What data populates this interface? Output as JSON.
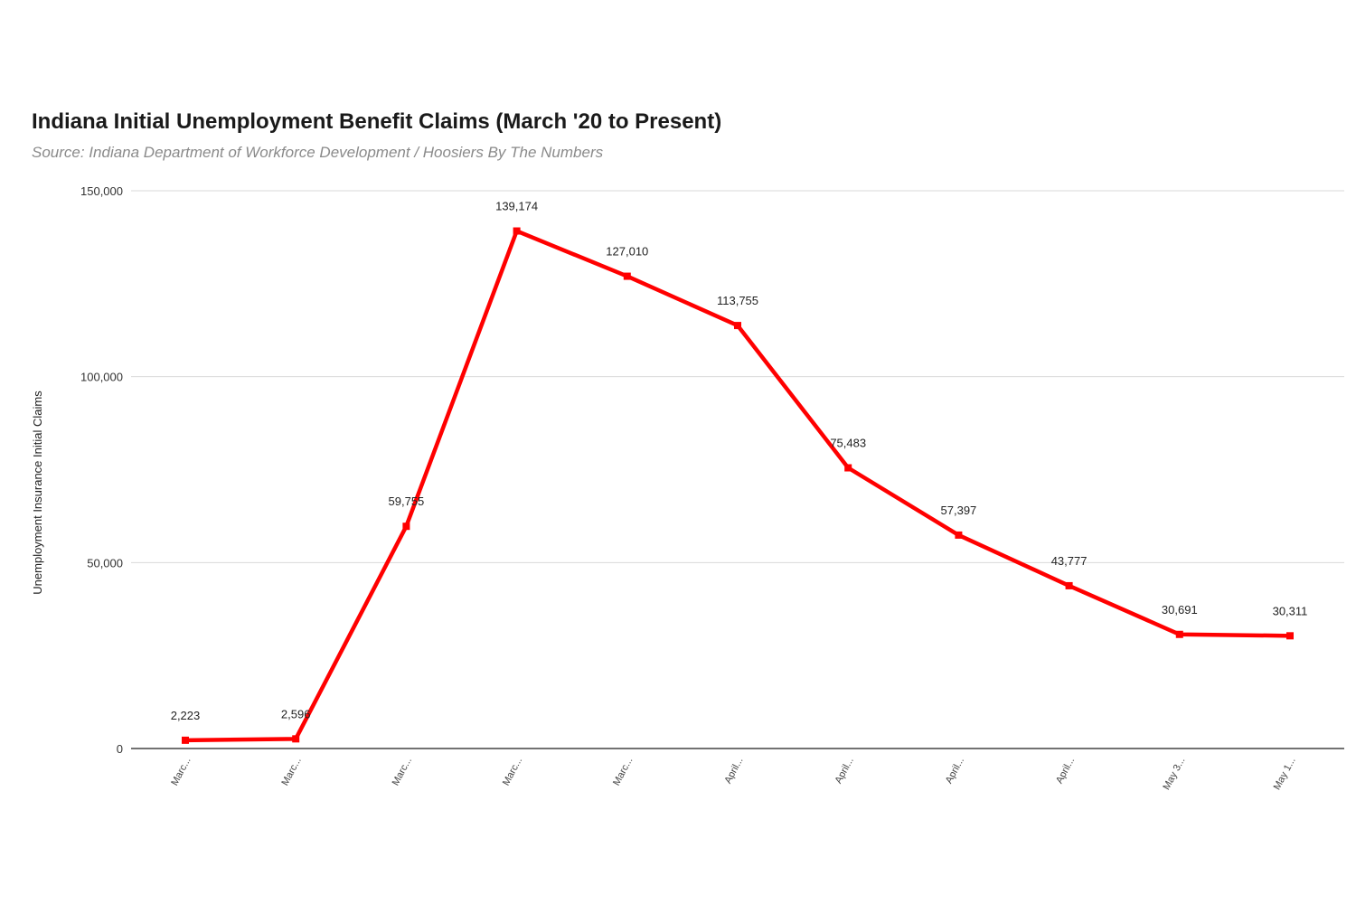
{
  "chart_data": {
    "type": "line",
    "title": "Indiana Initial Unemployment Benefit Claims (March '20 to Present)",
    "subtitle": "Source: Indiana Department of Workforce Development / Hoosiers By The Numbers",
    "xlabel": "",
    "ylabel": "Unemployment Insurance Initial Claims",
    "ylim": [
      0,
      150000
    ],
    "yticks": [
      0,
      50000,
      100000,
      150000
    ],
    "ytick_labels": [
      "0",
      "50,000",
      "100,000",
      "150,000"
    ],
    "grid": true,
    "categories": [
      "Marc...",
      "Marc...",
      "Marc...",
      "Marc...",
      "Marc...",
      "April...",
      "April...",
      "April...",
      "April...",
      "May 3...",
      "May 1..."
    ],
    "series": [
      {
        "color": "#ff0000",
        "values": [
          2223,
          2596,
          59755,
          139174,
          127010,
          113755,
          75483,
          57397,
          43777,
          30691,
          30311
        ],
        "labels": [
          "2,223",
          "2,596",
          "59,755",
          "139,174",
          "127,010",
          "113,755",
          "75,483",
          "57,397",
          "43,777",
          "30,691",
          "30,311"
        ]
      }
    ]
  }
}
